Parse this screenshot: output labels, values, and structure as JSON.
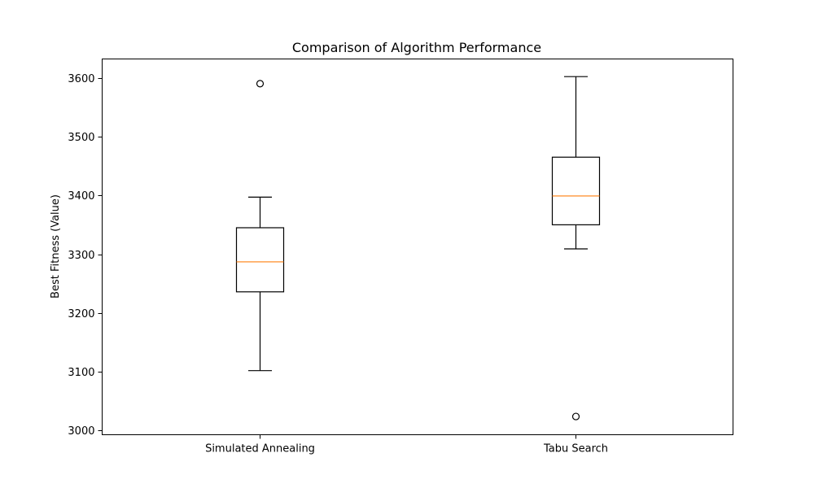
{
  "chart_data": {
    "type": "box",
    "title": "Comparison of Algorithm Performance",
    "xlabel": "",
    "ylabel": "Best Fitness (Value)",
    "ylim": [
      2993,
      3632
    ],
    "yticks": [
      3000,
      3100,
      3200,
      3300,
      3400,
      3500,
      3600
    ],
    "yticklabels": [
      "3000",
      "3100",
      "3200",
      "3300",
      "3400",
      "3500",
      "3600"
    ],
    "grid": false,
    "categories": [
      "Simulated Annealing",
      "Tabu Search"
    ],
    "boxes": [
      {
        "category": "Simulated Annealing",
        "whisker_low": 3102,
        "q1": 3236,
        "median": 3287,
        "q3": 3345,
        "whisker_high": 3397,
        "outliers": [
          3590
        ]
      },
      {
        "category": "Tabu Search",
        "whisker_low": 3309,
        "q1": 3350,
        "median": 3399,
        "q3": 3465,
        "whisker_high": 3602,
        "outliers": [
          3024
        ]
      }
    ],
    "colors": {
      "box": "#000000",
      "median": "#ff7f0e",
      "outlier": "#000000"
    }
  }
}
